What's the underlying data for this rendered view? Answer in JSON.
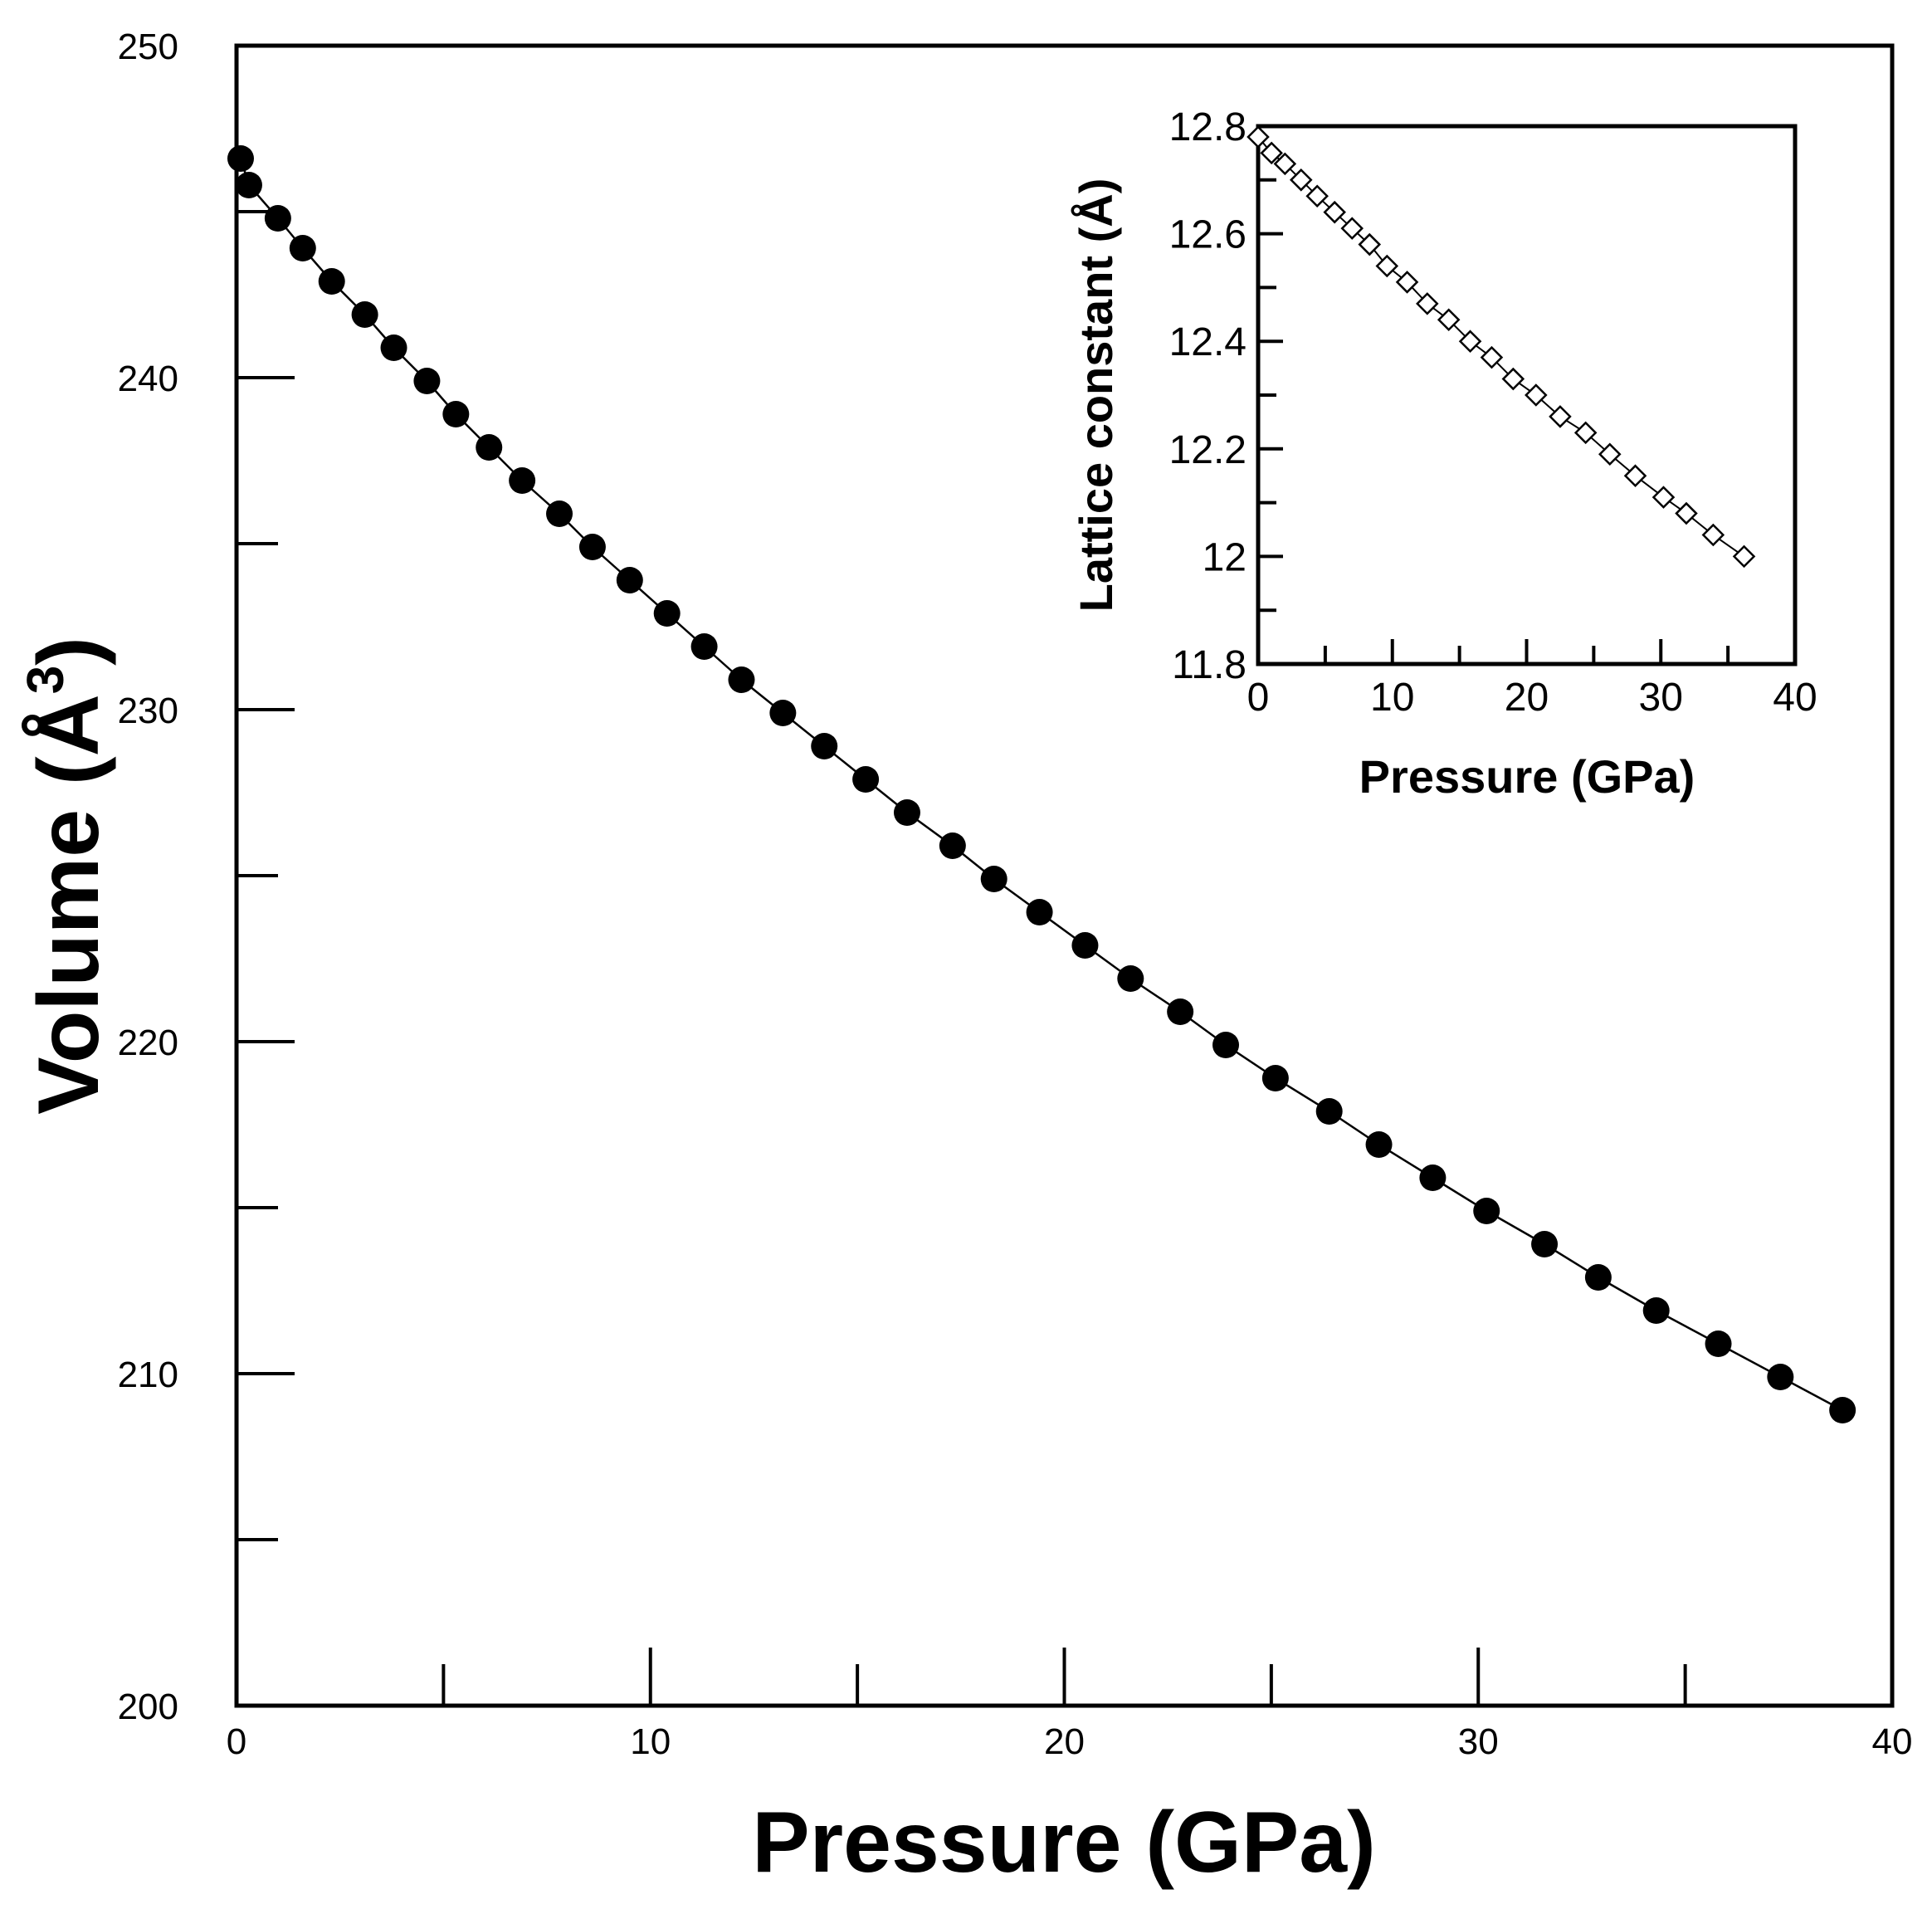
{
  "chart_data": [
    {
      "id": "main",
      "type": "line",
      "xlabel": "Pressure (GPa)",
      "ylabel": "Volume (Å",
      "ylabel_sup": "3",
      "ylabel_close": ")",
      "xlim": [
        0,
        40
      ],
      "ylim": [
        200,
        250
      ],
      "xticks": [
        "0",
        "10",
        "20",
        "30",
        "40"
      ],
      "yticks": [
        "200",
        "210",
        "220",
        "230",
        "240",
        "250"
      ],
      "grid": false,
      "legend": "none",
      "series": [
        {
          "name": "Volume",
          "marker": "filled-circle",
          "x": [
            0.1,
            0.3,
            1.0,
            1.6,
            2.3,
            3.1,
            3.8,
            4.6,
            5.3,
            6.1,
            6.9,
            7.8,
            8.6,
            9.5,
            10.4,
            11.3,
            12.2,
            13.2,
            14.2,
            15.2,
            16.2,
            17.3,
            18.3,
            19.4,
            20.5,
            21.6,
            22.8,
            23.9,
            25.1,
            26.4,
            27.6,
            28.9,
            30.2,
            31.6,
            32.9,
            34.3,
            35.8,
            37.3,
            38.8
          ],
          "y": [
            246.6,
            245.8,
            244.8,
            243.9,
            242.9,
            241.9,
            240.9,
            239.9,
            238.9,
            237.9,
            236.9,
            235.9,
            234.9,
            233.9,
            232.9,
            231.9,
            230.9,
            229.9,
            228.9,
            227.9,
            226.9,
            225.9,
            224.9,
            223.9,
            222.9,
            221.9,
            220.9,
            219.9,
            218.9,
            217.9,
            216.9,
            215.9,
            214.9,
            213.9,
            212.9,
            211.9,
            210.9,
            209.9,
            208.9
          ]
        }
      ]
    },
    {
      "id": "inset",
      "type": "line",
      "xlabel": "Pressure (GPa)",
      "ylabel": "Lattice constant (Å)",
      "xlim": [
        0,
        40
      ],
      "ylim": [
        11.8,
        12.8
      ],
      "xticks": [
        "0",
        "10",
        "20",
        "30",
        "40"
      ],
      "yticks": [
        "11.8",
        "12",
        "12.2",
        "12.4",
        "12.6",
        "12.8"
      ],
      "grid": false,
      "legend": "none",
      "series": [
        {
          "name": "Lattice constant",
          "marker": "open-diamond",
          "x": [
            0.0,
            1.0,
            2.0,
            3.2,
            4.4,
            5.7,
            7.0,
            8.3,
            9.6,
            11.1,
            12.6,
            14.2,
            15.8,
            17.4,
            19.0,
            20.7,
            22.5,
            24.4,
            26.2,
            28.1,
            30.2,
            31.9,
            33.9,
            36.2
          ],
          "y": [
            12.78,
            12.75,
            12.73,
            12.7,
            12.67,
            12.64,
            12.61,
            12.58,
            12.54,
            12.51,
            12.47,
            12.44,
            12.4,
            12.37,
            12.33,
            12.3,
            12.26,
            12.23,
            12.19,
            12.15,
            12.11,
            12.08,
            12.04,
            12.0
          ]
        }
      ]
    }
  ]
}
